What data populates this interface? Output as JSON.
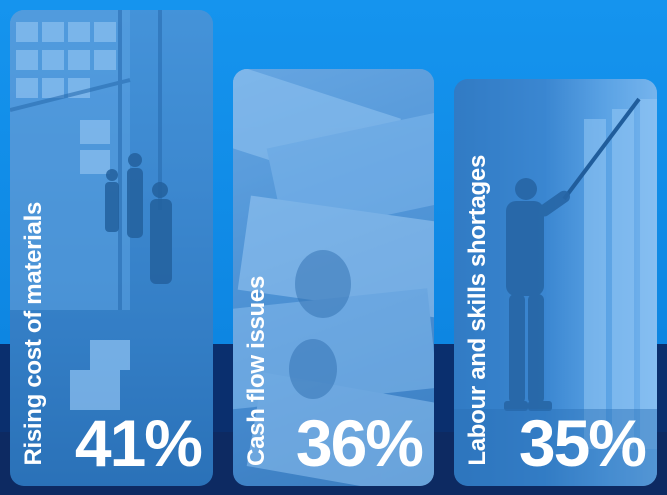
{
  "chart_data": {
    "type": "bar",
    "orientation": "vertical",
    "categories": [
      "Rising cost of materials",
      "Cash flow issues",
      "Labour and skills shortages"
    ],
    "values": [
      41,
      36,
      35
    ],
    "value_labels": [
      "41%",
      "36%",
      "35%"
    ],
    "unit": "%",
    "title": "",
    "xlabel": "",
    "ylabel": "",
    "grid": false,
    "legend": "none"
  },
  "colors": {
    "background": "#0f8be6",
    "lower_band": "#0a2f6e",
    "label_text": "#ffffff"
  }
}
